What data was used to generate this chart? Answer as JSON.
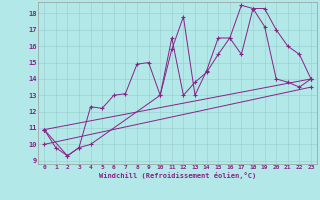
{
  "xlabel": "Windchill (Refroidissement éolien,°C)",
  "bg_color": "#b2e8e8",
  "line_color": "#882288",
  "xlim": [
    -0.5,
    23.5
  ],
  "ylim": [
    8.8,
    18.7
  ],
  "yticks": [
    9,
    10,
    11,
    12,
    13,
    14,
    15,
    16,
    17,
    18
  ],
  "xticks": [
    0,
    1,
    2,
    3,
    4,
    5,
    6,
    7,
    8,
    9,
    10,
    11,
    12,
    13,
    14,
    15,
    16,
    17,
    18,
    19,
    20,
    21,
    22,
    23
  ],
  "series": [
    {
      "x": [
        0,
        1,
        2,
        3,
        4,
        5,
        6,
        7,
        8,
        9,
        10,
        11,
        12,
        13,
        14,
        15,
        16,
        17,
        18,
        19,
        20,
        21,
        22,
        23
      ],
      "y": [
        10.9,
        9.8,
        9.3,
        9.8,
        12.3,
        12.2,
        13.0,
        13.1,
        14.9,
        15.0,
        13.0,
        16.5,
        13.0,
        13.8,
        14.4,
        15.5,
        16.5,
        15.5,
        18.3,
        18.3,
        17.0,
        16.0,
        15.5,
        14.0
      ]
    },
    {
      "x": [
        0,
        2,
        3,
        4,
        10,
        11,
        12,
        13,
        14,
        15,
        16,
        17,
        18,
        19,
        20,
        21,
        22,
        23
      ],
      "y": [
        10.9,
        9.3,
        9.8,
        10.0,
        13.0,
        15.8,
        17.8,
        13.0,
        14.5,
        16.5,
        16.5,
        18.5,
        18.3,
        17.2,
        14.0,
        13.8,
        13.5,
        14.0
      ]
    },
    {
      "x": [
        0,
        23
      ],
      "y": [
        10.9,
        14.0
      ]
    },
    {
      "x": [
        0,
        23
      ],
      "y": [
        10.0,
        13.5
      ]
    }
  ]
}
